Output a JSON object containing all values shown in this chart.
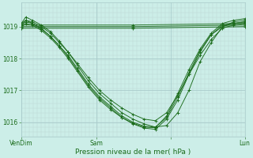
{
  "xlabel": "Pression niveau de la mer( hPa )",
  "background_color": "#cceee8",
  "plot_bg_color": "#cceee8",
  "line_color": "#1a6b1a",
  "grid_major_color": "#aacccc",
  "grid_minor_color": "#bdd8d4",
  "ylim": [
    1015.55,
    1019.75
  ],
  "yticks": [
    1016,
    1017,
    1018,
    1019
  ],
  "xtick_positions": [
    0.0,
    0.335,
    0.67,
    1.0
  ],
  "xtick_labels": [
    "VenDim",
    "Sam",
    "",
    "Lun"
  ],
  "series": [
    {
      "x": [
        0.0,
        0.02,
        0.05,
        0.09,
        0.13,
        0.17,
        0.21,
        0.25,
        0.3,
        0.35,
        0.4,
        0.45,
        0.5,
        0.55,
        0.6,
        0.65,
        0.7,
        0.75,
        0.8,
        0.85,
        0.9,
        0.95,
        1.0
      ],
      "y": [
        1019.1,
        1019.3,
        1019.2,
        1019.05,
        1018.85,
        1018.55,
        1018.2,
        1017.8,
        1017.3,
        1016.9,
        1016.6,
        1016.3,
        1016.1,
        1015.95,
        1015.85,
        1015.9,
        1016.3,
        1017.0,
        1017.9,
        1018.5,
        1019.0,
        1019.15,
        1019.2
      ]
    },
    {
      "x": [
        0.0,
        0.02,
        0.05,
        0.09,
        0.13,
        0.17,
        0.21,
        0.25,
        0.3,
        0.35,
        0.4,
        0.45,
        0.5,
        0.55,
        0.6,
        0.65,
        0.7,
        0.75,
        0.8,
        0.85,
        0.9,
        0.95,
        1.0
      ],
      "y": [
        1019.05,
        1019.2,
        1019.1,
        1018.95,
        1018.7,
        1018.4,
        1018.05,
        1017.65,
        1017.15,
        1016.75,
        1016.45,
        1016.15,
        1015.95,
        1015.82,
        1015.78,
        1016.1,
        1016.7,
        1017.5,
        1018.2,
        1018.75,
        1019.0,
        1019.1,
        1019.15
      ]
    },
    {
      "x": [
        0.0,
        0.02,
        0.05,
        0.09,
        0.13,
        0.17,
        0.21,
        0.25,
        0.3,
        0.35,
        0.4,
        0.45,
        0.5,
        0.55,
        0.6,
        0.65,
        0.7,
        0.75,
        0.8,
        0.85,
        0.9,
        0.95,
        1.0
      ],
      "y": [
        1019.0,
        1019.1,
        1019.05,
        1018.88,
        1018.65,
        1018.35,
        1018.0,
        1017.6,
        1017.1,
        1016.7,
        1016.4,
        1016.15,
        1015.97,
        1015.85,
        1015.83,
        1016.2,
        1016.9,
        1017.65,
        1018.3,
        1018.8,
        1019.1,
        1019.2,
        1019.25
      ]
    },
    {
      "x": [
        0.0,
        0.02,
        0.05,
        0.09,
        0.13,
        0.17,
        0.21,
        0.25,
        0.3,
        0.35,
        0.4,
        0.45,
        0.5,
        0.55,
        0.6,
        0.65,
        0.7,
        0.75,
        0.8,
        0.85,
        0.9,
        0.95,
        1.0
      ],
      "y": [
        1019.05,
        1019.15,
        1019.1,
        1018.92,
        1018.7,
        1018.4,
        1018.1,
        1017.7,
        1017.2,
        1016.8,
        1016.5,
        1016.2,
        1016.0,
        1015.88,
        1015.85,
        1016.15,
        1016.8,
        1017.55,
        1018.25,
        1018.75,
        1019.05,
        1019.1,
        1019.15
      ]
    },
    {
      "x": [
        0.0,
        0.5,
        1.0
      ],
      "y": [
        1019.05,
        1019.05,
        1019.1
      ]
    },
    {
      "x": [
        0.0,
        0.5,
        1.0
      ],
      "y": [
        1019.0,
        1019.0,
        1019.05
      ]
    },
    {
      "x": [
        0.0,
        0.5,
        1.0
      ],
      "y": [
        1018.95,
        1018.95,
        1019.0
      ]
    },
    {
      "x": [
        0.0,
        0.02,
        0.05,
        0.09,
        0.13,
        0.17,
        0.21,
        0.25,
        0.3,
        0.35,
        0.4,
        0.45,
        0.5,
        0.55,
        0.6,
        0.65,
        0.7,
        0.75,
        0.8,
        0.85,
        0.9,
        0.95,
        1.0
      ],
      "y": [
        1019.1,
        1019.2,
        1019.15,
        1019.0,
        1018.8,
        1018.5,
        1018.2,
        1017.85,
        1017.4,
        1017.0,
        1016.7,
        1016.45,
        1016.25,
        1016.1,
        1016.05,
        1016.3,
        1016.85,
        1017.5,
        1018.1,
        1018.6,
        1018.95,
        1019.05,
        1019.1
      ]
    }
  ]
}
